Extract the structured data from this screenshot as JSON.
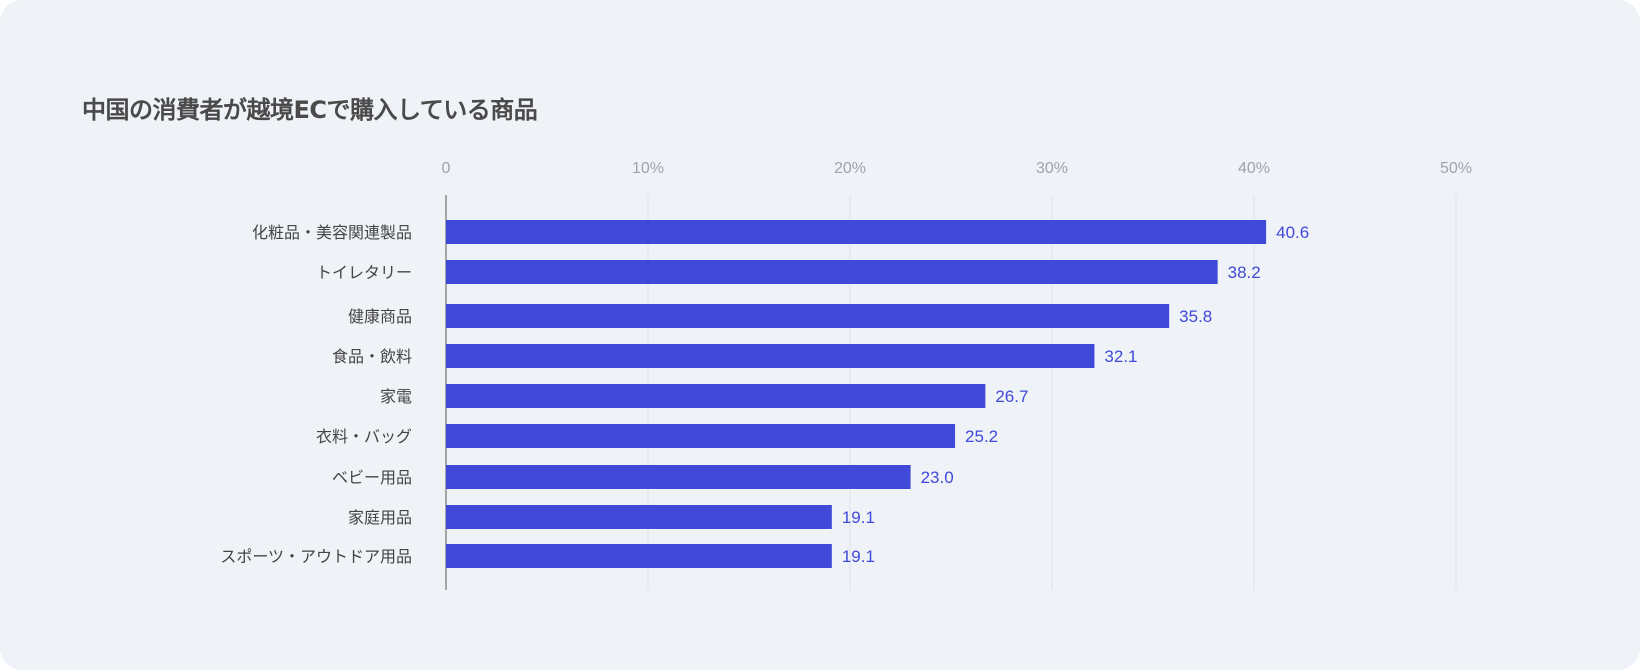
{
  "chart_data": {
    "type": "bar",
    "orientation": "horizontal",
    "title": "中国の消費者が越境ECで購入している商品",
    "categories": [
      "化粧品・美容関連製品",
      "トイレタリー",
      "健康商品",
      "食品・飲料",
      "家電",
      "衣料・バッグ",
      "ベビー用品",
      "家庭用品",
      "スポーツ・アウトドア用品"
    ],
    "values": [
      40.6,
      38.2,
      35.8,
      32.1,
      26.7,
      25.2,
      23.0,
      19.1,
      19.1
    ],
    "data_labels": [
      "40.6",
      "38.2",
      "35.8",
      "32.1",
      "26.7",
      "25.2",
      "23.0",
      "19.1",
      "19.1"
    ],
    "xlim": [
      0,
      50
    ],
    "xticks": [
      0,
      10,
      20,
      30,
      40,
      50
    ],
    "xtick_labels": [
      "0",
      "10%",
      "20%",
      "30%",
      "40%",
      "50%"
    ],
    "xaxis_position": "top",
    "grid": true,
    "colors": {
      "bar": "#4049d8",
      "label": "#4049d8",
      "background": "#eff2f7"
    }
  }
}
